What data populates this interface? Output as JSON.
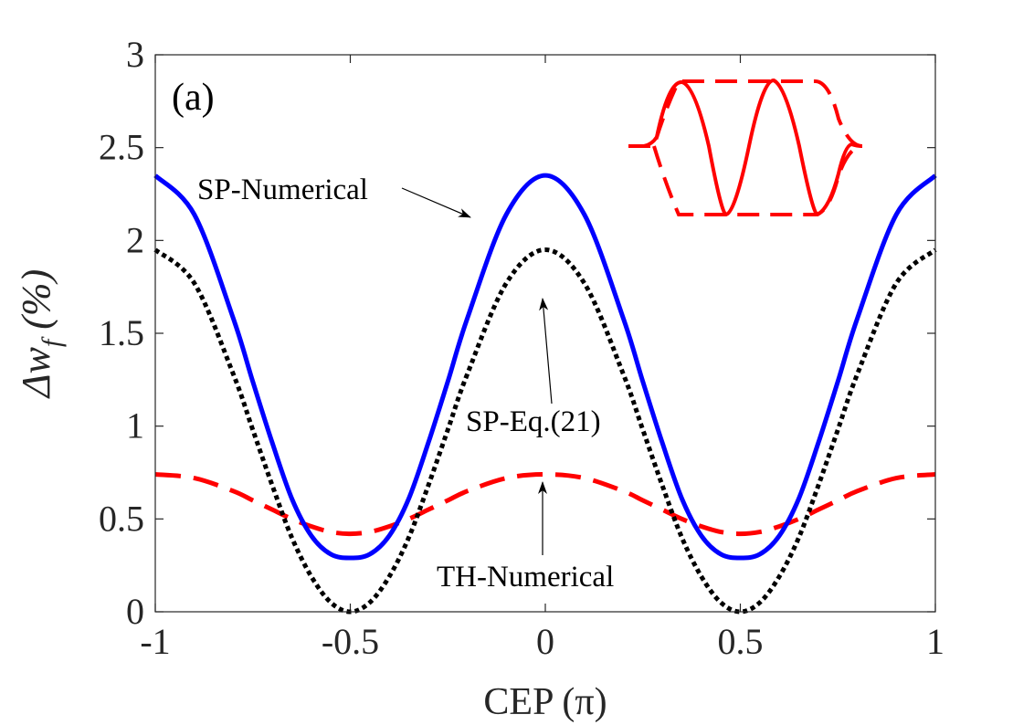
{
  "chart_data": {
    "type": "line",
    "panel_label": "(a)",
    "xlabel": "CEP (π)",
    "ylabel_prefix": "Δw",
    "ylabel_sub": "f",
    "ylabel_suffix": " (%)",
    "xlim": [
      -1,
      1
    ],
    "ylim": [
      0,
      3
    ],
    "xticks": [
      -1,
      -0.5,
      0,
      0.5,
      1
    ],
    "xtick_labels": [
      "-1",
      "-0.5",
      "0",
      "0.5",
      "1"
    ],
    "yticks": [
      0,
      0.5,
      1,
      1.5,
      2,
      2.5,
      3
    ],
    "ytick_labels": [
      "0",
      "0.5",
      "1",
      "1.5",
      "2",
      "2.5",
      "3"
    ],
    "series": [
      {
        "name": "SP-Numerical",
        "color": "#0000ff",
        "style": "solid",
        "x": [
          -1,
          -0.9,
          -0.8,
          -0.75,
          -0.7,
          -0.65,
          -0.6,
          -0.55,
          -0.5,
          -0.45,
          -0.4,
          -0.35,
          -0.3,
          -0.25,
          -0.2,
          -0.1,
          0,
          0.1,
          0.2,
          0.25,
          0.3,
          0.35,
          0.4,
          0.45,
          0.5,
          0.55,
          0.6,
          0.65,
          0.7,
          0.75,
          0.8,
          0.9,
          1
        ],
        "y": [
          2.35,
          2.14,
          1.58,
          1.24,
          0.91,
          0.61,
          0.41,
          0.31,
          0.29,
          0.31,
          0.41,
          0.61,
          0.91,
          1.24,
          1.58,
          2.14,
          2.35,
          2.14,
          1.58,
          1.24,
          0.91,
          0.61,
          0.41,
          0.31,
          0.29,
          0.31,
          0.41,
          0.61,
          0.91,
          1.24,
          1.58,
          2.14,
          2.35
        ]
      },
      {
        "name": "SP-Eq.(21)",
        "color": "#000000",
        "style": "dotted",
        "x": [
          -1,
          -0.9,
          -0.8,
          -0.75,
          -0.7,
          -0.65,
          -0.6,
          -0.55,
          -0.5,
          -0.45,
          -0.4,
          -0.35,
          -0.3,
          -0.25,
          -0.2,
          -0.1,
          0,
          0.1,
          0.2,
          0.25,
          0.3,
          0.35,
          0.4,
          0.45,
          0.5,
          0.55,
          0.6,
          0.65,
          0.7,
          0.75,
          0.8,
          0.9,
          1
        ],
        "y": [
          1.95,
          1.77,
          1.28,
          0.98,
          0.68,
          0.4,
          0.19,
          0.05,
          0.0,
          0.05,
          0.19,
          0.4,
          0.68,
          0.98,
          1.28,
          1.77,
          1.95,
          1.77,
          1.28,
          0.98,
          0.68,
          0.4,
          0.19,
          0.05,
          0.0,
          0.05,
          0.19,
          0.4,
          0.68,
          0.98,
          1.28,
          1.77,
          1.95
        ]
      },
      {
        "name": "TH-Numerical",
        "color": "#ff0000",
        "style": "dashed",
        "x": [
          -1,
          -0.9,
          -0.8,
          -0.75,
          -0.7,
          -0.65,
          -0.6,
          -0.55,
          -0.5,
          -0.45,
          -0.4,
          -0.35,
          -0.3,
          -0.25,
          -0.2,
          -0.1,
          0,
          0.1,
          0.2,
          0.25,
          0.3,
          0.35,
          0.4,
          0.45,
          0.5,
          0.55,
          0.6,
          0.65,
          0.7,
          0.75,
          0.8,
          0.9,
          1
        ],
        "y": [
          0.74,
          0.72,
          0.65,
          0.6,
          0.55,
          0.5,
          0.46,
          0.43,
          0.42,
          0.43,
          0.46,
          0.5,
          0.55,
          0.6,
          0.65,
          0.72,
          0.74,
          0.72,
          0.65,
          0.6,
          0.55,
          0.5,
          0.46,
          0.43,
          0.42,
          0.43,
          0.46,
          0.5,
          0.55,
          0.6,
          0.65,
          0.72,
          0.74
        ]
      }
    ],
    "annotations": [
      {
        "text": "SP-Numerical",
        "points_to": [
          -0.2,
          2.1
        ]
      },
      {
        "text": "SP-Eq.(21)",
        "points_to": [
          0,
          1.7
        ]
      },
      {
        "text": "TH-Numerical",
        "points_to": [
          0,
          0.7
        ]
      }
    ],
    "inset": {
      "description_icon": "pulse-waveform-icon",
      "color": "#ff0000"
    }
  }
}
